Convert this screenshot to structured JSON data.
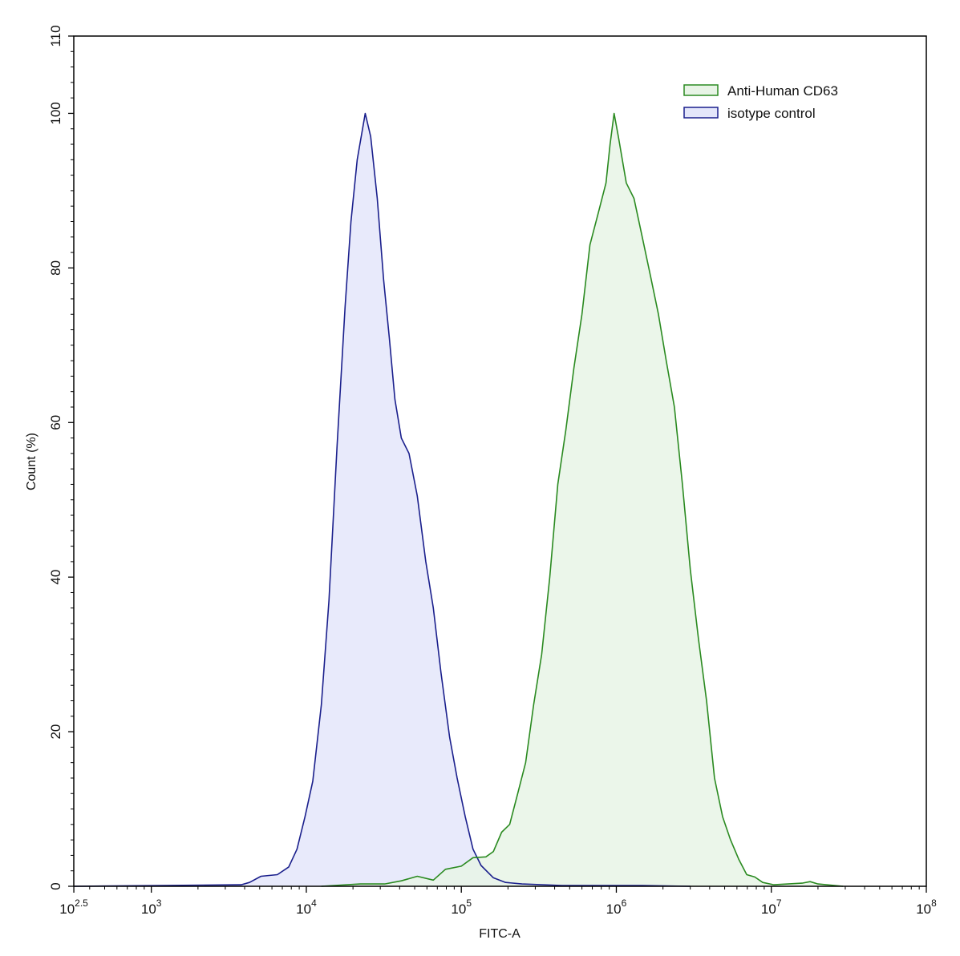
{
  "chart_data": {
    "type": "area",
    "xlabel": "FITC-A",
    "ylabel": "Count  (%)",
    "xscale": "log",
    "xlim": [
      316,
      100000000
    ],
    "ylim": [
      0,
      110
    ],
    "x_ticks": [
      {
        "base": "10",
        "exp": "2.5",
        "value": 316.2
      },
      {
        "base": "10",
        "exp": "3",
        "value": 1000
      },
      {
        "base": "10",
        "exp": "4",
        "value": 10000
      },
      {
        "base": "10",
        "exp": "5",
        "value": 100000
      },
      {
        "base": "10",
        "exp": "6",
        "value": 1000000
      },
      {
        "base": "10",
        "exp": "7",
        "value": 10000000
      },
      {
        "base": "10",
        "exp": "8",
        "value": 100000000
      }
    ],
    "y_ticks": [
      "0",
      "20",
      "40",
      "60",
      "80",
      "100",
      "110"
    ],
    "grid": false,
    "legend_position": "top-right",
    "series": [
      {
        "name": "Anti-Human CD63",
        "stroke": "#2a8a20",
        "fill": "#e8f4e6",
        "points": [
          [
            12500,
            0
          ],
          [
            22300,
            0.3
          ],
          [
            32000,
            0.3
          ],
          [
            41000,
            0.7
          ],
          [
            52000,
            1.3
          ],
          [
            66000,
            0.8
          ],
          [
            79000,
            2.2
          ],
          [
            100000,
            2.6
          ],
          [
            119000,
            3.7
          ],
          [
            144000,
            3.8
          ],
          [
            161000,
            4.5
          ],
          [
            182000,
            7
          ],
          [
            205000,
            8
          ],
          [
            231000,
            12
          ],
          [
            260000,
            16
          ],
          [
            293000,
            23.5
          ],
          [
            330000,
            30
          ],
          [
            372000,
            40
          ],
          [
            419000,
            52
          ],
          [
            472000,
            59
          ],
          [
            532000,
            67
          ],
          [
            600000,
            74
          ],
          [
            676000,
            83
          ],
          [
            762000,
            87
          ],
          [
            858000,
            91
          ],
          [
            911000,
            96
          ],
          [
            967000,
            100
          ],
          [
            1030000,
            97
          ],
          [
            1160000,
            91
          ],
          [
            1300000,
            89
          ],
          [
            1470000,
            84
          ],
          [
            1660000,
            79
          ],
          [
            1870000,
            74
          ],
          [
            2100000,
            68
          ],
          [
            2370000,
            62
          ],
          [
            2670000,
            52
          ],
          [
            3000000,
            41
          ],
          [
            3390000,
            32
          ],
          [
            3820000,
            24
          ],
          [
            4300000,
            14
          ],
          [
            4850000,
            9
          ],
          [
            5460000,
            6
          ],
          [
            6160000,
            3.5
          ],
          [
            6940000,
            1.5
          ],
          [
            7820000,
            1.2
          ],
          [
            8800000,
            0.5
          ],
          [
            10400000,
            0.2
          ],
          [
            15800000,
            0.4
          ],
          [
            17800000,
            0.6
          ],
          [
            20000000,
            0.3
          ],
          [
            29000000,
            0
          ]
        ]
      },
      {
        "name": "isotype control",
        "stroke": "#1a1f8c",
        "fill": "#e4e6fa",
        "points": [
          [
            316,
            0
          ],
          [
            1150,
            0.1
          ],
          [
            3800,
            0.2
          ],
          [
            4300,
            0.5
          ],
          [
            5100,
            1.3
          ],
          [
            6500,
            1.5
          ],
          [
            7700,
            2.5
          ],
          [
            8700,
            4.8
          ],
          [
            9800,
            9
          ],
          [
            11000,
            13.6
          ],
          [
            12500,
            23.5
          ],
          [
            14000,
            37
          ],
          [
            15800,
            57
          ],
          [
            17800,
            75
          ],
          [
            19400,
            86
          ],
          [
            21300,
            94
          ],
          [
            24000,
            100
          ],
          [
            26000,
            97
          ],
          [
            28700,
            89
          ],
          [
            31500,
            78.5
          ],
          [
            34300,
            71
          ],
          [
            37300,
            63
          ],
          [
            41000,
            58
          ],
          [
            46000,
            56
          ],
          [
            52000,
            50.5
          ],
          [
            59000,
            42
          ],
          [
            66000,
            36
          ],
          [
            74000,
            27.6
          ],
          [
            84000,
            19.3
          ],
          [
            94000,
            14
          ],
          [
            106000,
            9
          ],
          [
            119000,
            4.8
          ],
          [
            134000,
            2.7
          ],
          [
            161000,
            1.1
          ],
          [
            193000,
            0.5
          ],
          [
            246000,
            0.3
          ],
          [
            445000,
            0.1
          ],
          [
            1470000,
            0.1
          ],
          [
            3000000,
            0
          ]
        ]
      }
    ]
  }
}
